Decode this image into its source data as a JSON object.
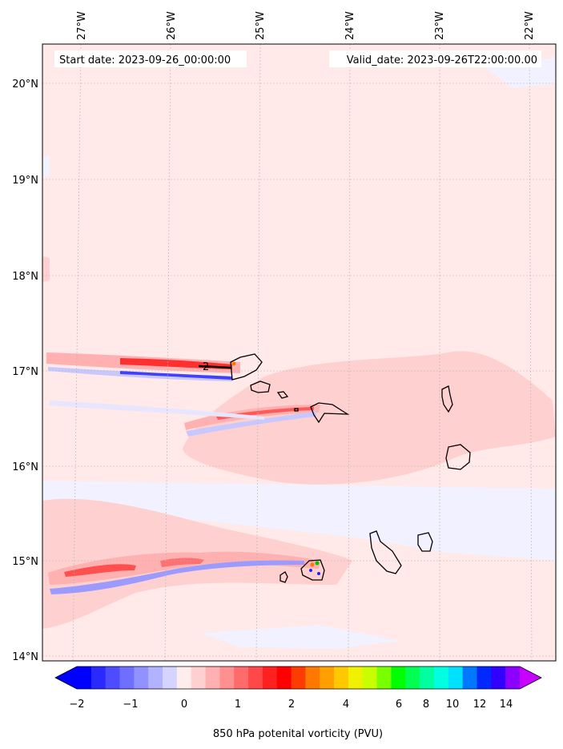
{
  "header": {
    "start_date": "Start date: 2023-09-26_00:00:00",
    "valid_date": "Valid_date: 2023-09-26T22:00:00.00"
  },
  "axes": {
    "lon_labels": [
      "27°W",
      "26°W",
      "25°W",
      "24°W",
      "23°W",
      "22°W"
    ],
    "lat_labels": [
      "20°N",
      "19°N",
      "18°N",
      "17°N",
      "16°N",
      "15°N",
      "14°N"
    ]
  },
  "contour_label": "2",
  "colorbar": {
    "tick_labels": [
      "−2",
      "−1",
      "0",
      "1",
      "2",
      "4",
      "6",
      "8",
      "10",
      "12",
      "14"
    ],
    "label": "850 hPa potenital vorticity (PVU)",
    "colors": [
      "#0000ff",
      "#2a2aff",
      "#4d4dff",
      "#6f6fff",
      "#9191ff",
      "#b2b2ff",
      "#d4d4ff",
      "#ffecec",
      "#ffd0d0",
      "#ffb0b0",
      "#ff9090",
      "#ff6a6a",
      "#ff4848",
      "#ff2020",
      "#ff0000",
      "#ff3c00",
      "#ff7800",
      "#ffa000",
      "#ffc800",
      "#f0f000",
      "#c8ff00",
      "#78ff00",
      "#00ff00",
      "#00ff50",
      "#00ffa0",
      "#00ffe0",
      "#00e0ff",
      "#0078ff",
      "#0028ff",
      "#3200ff",
      "#8c00ff"
    ],
    "under_color": "#0000ff",
    "over_color": "#c800ff"
  },
  "colors": {
    "background": "#ffe9e9",
    "light_red": "#ffd0d0",
    "mid_red": "#ff9a9a",
    "strong_red": "#ff2a2a",
    "light_blue": "#eef0ff",
    "mid_blue": "#c8c8ff",
    "strong_blue": "#4040ff"
  }
}
